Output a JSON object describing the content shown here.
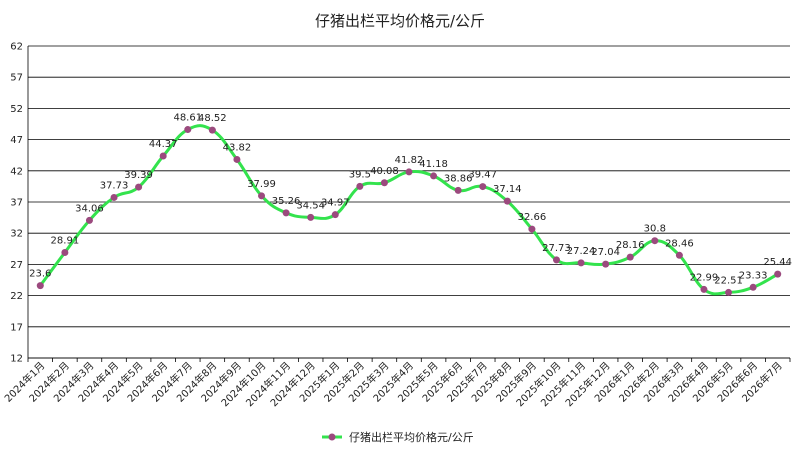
{
  "chart_data": {
    "type": "line",
    "title": "仔猪出栏平均价格元/公斤",
    "xlabel": "",
    "ylabel": "",
    "ylim": [
      12,
      62
    ],
    "yticks": [
      12,
      17,
      22,
      27,
      32,
      37,
      42,
      47,
      52,
      57,
      62
    ],
    "grid": true,
    "legend_position": "bottom",
    "line_color": "#33e34d",
    "marker_color": "#9b4a7e",
    "categories": [
      "2024年1月",
      "2024年2月",
      "2024年3月",
      "2024年4月",
      "2024年5月",
      "2024年6月",
      "2024年7月",
      "2024年8月",
      "2024年9月",
      "2024年10月",
      "2024年11月",
      "2024年12月",
      "2025年1月",
      "2025年2月",
      "2025年3月",
      "2025年4月",
      "2025年5月",
      "2025年6月",
      "2025年7月",
      "2025年8月",
      "2025年9月",
      "2025年10月",
      "2025年11月",
      "2025年12月",
      "2026年1月",
      "2026年2月",
      "2026年3月",
      "2026年4月",
      "2026年5月",
      "2026年6月",
      "2026年7月"
    ],
    "series": [
      {
        "name": "仔猪出栏平均价格元/公斤",
        "values": [
          23.6,
          28.91,
          34.06,
          37.73,
          39.39,
          44.37,
          48.61,
          48.52,
          43.82,
          37.99,
          35.26,
          34.54,
          34.97,
          39.5,
          40.08,
          41.82,
          41.18,
          38.86,
          39.47,
          37.14,
          32.66,
          27.73,
          27.24,
          27.04,
          28.16,
          30.8,
          28.46,
          22.99,
          22.51,
          23.33,
          25.44
        ],
        "labels": [
          "23.6",
          "28.91",
          "34.06",
          "37.73",
          "39.39",
          "44.37",
          "48.61",
          "48.52",
          "43.82",
          "37.99",
          "35.26",
          "34.54",
          "34.97",
          "39.5",
          "40.08",
          "41.82",
          "41.18",
          "38.86",
          "39.47",
          "37.14",
          "32.66",
          "27.73",
          "27.24",
          "27.04",
          "28.16",
          "30.8",
          "28.46",
          "22.99",
          "22.51",
          "23.33",
          "25.44"
        ]
      }
    ]
  }
}
